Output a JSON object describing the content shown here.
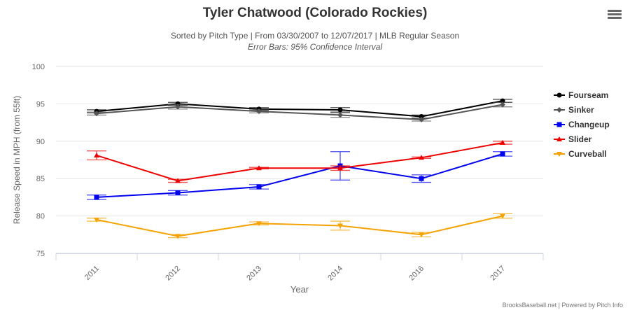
{
  "chart_data": {
    "type": "line",
    "title": "Tyler Chatwood (Colorado Rockies)",
    "subtitle": "Sorted by Pitch Type | From 03/30/2007 to 12/07/2017 | MLB Regular Season",
    "subtitle2": "Error Bars: 95% Confidence Interval",
    "xlabel": "Year",
    "ylabel": "Release Speed in MPH (from 55ft)",
    "categories": [
      "2011",
      "2012",
      "2013",
      "2014",
      "2016",
      "2017"
    ],
    "ylim": [
      75,
      100
    ],
    "yticks": [
      75,
      80,
      85,
      90,
      95,
      100
    ],
    "grid": true,
    "legend": "right",
    "series": [
      {
        "name": "Fourseam",
        "color": "#000000",
        "marker": "circle",
        "values": [
          94.0,
          95.0,
          94.3,
          94.2,
          93.3,
          95.4
        ],
        "err": [
          0.2,
          0.2,
          0.2,
          0.3,
          0.2,
          0.2
        ]
      },
      {
        "name": "Sinker",
        "color": "#555555",
        "marker": "diamond",
        "values": [
          93.7,
          94.6,
          94.0,
          93.5,
          92.9,
          94.9
        ],
        "err": [
          0.2,
          0.3,
          0.2,
          0.3,
          0.2,
          0.3
        ]
      },
      {
        "name": "Changeup",
        "color": "#0000ee",
        "marker": "square",
        "values": [
          82.5,
          83.1,
          83.9,
          86.7,
          85.0,
          88.3
        ],
        "err": [
          0.3,
          0.3,
          0.3,
          1.9,
          0.5,
          0.3
        ]
      },
      {
        "name": "Slider",
        "color": "#ee0000",
        "marker": "triangle",
        "values": [
          88.1,
          84.7,
          86.4,
          86.4,
          87.8,
          89.8
        ],
        "err": [
          0.6,
          0.2,
          0.1,
          0.3,
          0.1,
          0.2
        ]
      },
      {
        "name": "Curveball",
        "color": "#f4a300",
        "marker": "triangle-down",
        "values": [
          79.5,
          77.3,
          79.0,
          78.7,
          77.5,
          80.0
        ],
        "err": [
          0.2,
          0.2,
          0.2,
          0.6,
          0.3,
          0.3
        ]
      }
    ]
  },
  "credits": "BrooksBaseball.net | Powered by Pitch Info"
}
